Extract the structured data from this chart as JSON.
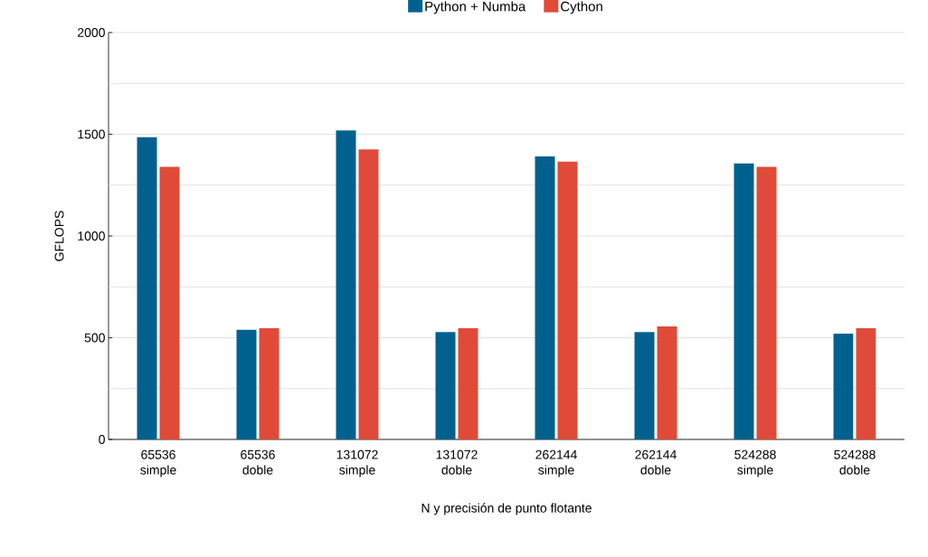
{
  "chart_data": {
    "type": "bar",
    "categories": [
      "65536\nsimple",
      "65536\ndoble",
      "131072\nsimple",
      "131072\ndoble",
      "262144\nsimple",
      "262144\ndoble",
      "524288\nsimple",
      "524288\ndoble"
    ],
    "series": [
      {
        "name": "Python + Numba",
        "color": "#00618f",
        "values": [
          1485,
          539,
          1519,
          528,
          1391,
          528,
          1357,
          520
        ]
      },
      {
        "name": "Cython",
        "color": "#e04b39",
        "values": [
          1340,
          547,
          1425,
          547,
          1366,
          555,
          1340,
          547
        ]
      }
    ],
    "xlabel": "N y precisión de punto flotante",
    "ylabel": "GFLOPS",
    "ylim": [
      0,
      2000
    ],
    "yticks": [
      0,
      {
        "value": 250,
        "label": null
      },
      500,
      {
        "value": 750,
        "label": null
      },
      1000,
      {
        "value": 1250,
        "label": null
      },
      1500,
      {
        "value": 1750,
        "label": null
      },
      2000
    ],
    "grid": "y",
    "legend": "top"
  }
}
